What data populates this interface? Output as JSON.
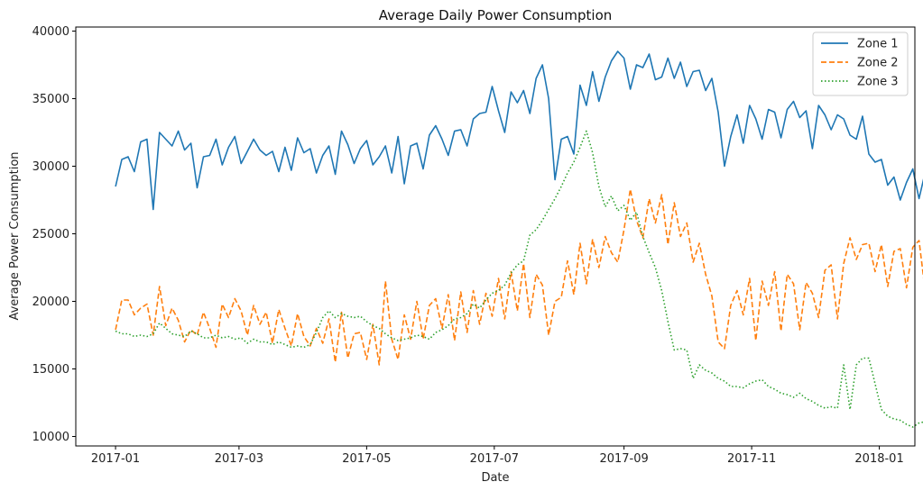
{
  "chart_data": {
    "type": "line",
    "title": "Average Daily Power Consumption",
    "xlabel": "Date",
    "ylabel": "Average Power Consumption",
    "xlim": [
      "2016-12-13",
      "2018-01-18"
    ],
    "ylim": [
      9300,
      40300
    ],
    "x_ticks": [
      "2017-01",
      "2017-03",
      "2017-05",
      "2017-07",
      "2017-09",
      "2017-11",
      "2018-01"
    ],
    "y_ticks": [
      10000,
      15000,
      20000,
      25000,
      30000,
      35000,
      40000
    ],
    "grid": false,
    "legend_position": "top-right",
    "x_start": "2017-01-01",
    "x_step_days": 3,
    "series": [
      {
        "name": "Zone 1",
        "color": "#1f77b4",
        "dash": "solid",
        "values": [
          28500,
          30500,
          30700,
          29600,
          31800,
          32000,
          26800,
          32500,
          32000,
          31500,
          32600,
          31200,
          31700,
          28400,
          30700,
          30800,
          32000,
          30100,
          31400,
          32200,
          30200,
          31100,
          32000,
          31200,
          30800,
          31100,
          29600,
          31400,
          29700,
          32100,
          31000,
          31300,
          29500,
          30800,
          31500,
          29400,
          32600,
          31600,
          30200,
          31300,
          31900,
          30100,
          30700,
          31500,
          29500,
          32200,
          28700,
          31500,
          31700,
          29800,
          32300,
          33000,
          32000,
          30800,
          32600,
          32700,
          31500,
          33500,
          33900,
          34000,
          35900,
          34100,
          32500,
          35500,
          34700,
          35600,
          33900,
          36500,
          37500,
          35000,
          29000,
          32000,
          32200,
          30900,
          36000,
          34500,
          37000,
          34800,
          36600,
          37800,
          38500,
          38000,
          35700,
          37500,
          37300,
          38300,
          36400,
          36600,
          38000,
          36500,
          37700,
          35900,
          37000,
          37100,
          35600,
          36500,
          34000,
          30000,
          32200,
          33800,
          31700,
          34500,
          33500,
          32000,
          34200,
          34000,
          32100,
          34200,
          34800,
          33600,
          34100,
          31300,
          34500,
          33800,
          32700,
          33800,
          33500,
          32300,
          32000,
          33700,
          30900,
          30300,
          30500,
          28600,
          29200,
          27500,
          28800,
          29800,
          27600,
          29600,
          28200,
          29000,
          27700,
          29000,
          30200,
          27300,
          29400,
          30600,
          27200,
          30100,
          29800,
          28800,
          29600,
          27500,
          30000,
          28000
        ]
      },
      {
        "name": "Zone 2",
        "color": "#ff7f0e",
        "dash": "dashed",
        "values": [
          17900,
          20100,
          20100,
          19000,
          19500,
          19800,
          17500,
          21100,
          18200,
          19500,
          18600,
          17000,
          17900,
          17500,
          19200,
          18000,
          16600,
          19800,
          18800,
          20200,
          19300,
          17500,
          19700,
          18300,
          19200,
          16900,
          19400,
          18000,
          16700,
          19100,
          17400,
          16700,
          18000,
          16900,
          18700,
          15500,
          19200,
          15800,
          17600,
          17700,
          15700,
          18300,
          15300,
          21500,
          17200,
          15700,
          19000,
          17200,
          20000,
          17200,
          19700,
          20200,
          18000,
          20500,
          17100,
          20700,
          17700,
          20800,
          18300,
          20600,
          18900,
          21700,
          18700,
          22200,
          19300,
          22800,
          18800,
          22000,
          21200,
          17500,
          20000,
          20300,
          23000,
          20500,
          24300,
          21300,
          24600,
          22500,
          24800,
          23600,
          22900,
          25300,
          28300,
          26000,
          24700,
          27600,
          25800,
          27900,
          24200,
          27300,
          24800,
          25800,
          22900,
          24300,
          22000,
          20400,
          17000,
          16500,
          19700,
          20800,
          19000,
          21700,
          17100,
          21500,
          19700,
          22200,
          17800,
          22000,
          21300,
          17900,
          21400,
          20600,
          18800,
          22300,
          22700,
          18700,
          22800,
          24700,
          23100,
          24200,
          24300,
          22200,
          24200,
          21100,
          23700,
          23900,
          21000,
          24000,
          24500,
          20700,
          24000,
          24200,
          23600,
          24400,
          24900,
          21300,
          24300,
          24400,
          22000,
          24000,
          24200,
          21800,
          24300,
          24200,
          21500,
          24500,
          24800,
          24300
        ]
      },
      {
        "name": "Zone 3",
        "color": "#2ca02c",
        "dash": "dotted",
        "values": [
          17800,
          17600,
          17600,
          17400,
          17500,
          17400,
          17600,
          18400,
          18000,
          17600,
          17500,
          17400,
          17800,
          17600,
          17300,
          17300,
          17500,
          17300,
          17400,
          17200,
          17300,
          16900,
          17200,
          17000,
          17000,
          16800,
          17000,
          16800,
          16600,
          16700,
          16600,
          16800,
          17700,
          18800,
          19300,
          18800,
          19100,
          18900,
          18800,
          18900,
          18500,
          18200,
          18000,
          17600,
          17300,
          17100,
          17200,
          17300,
          17500,
          17400,
          17200,
          17700,
          17900,
          18200,
          18700,
          18800,
          19100,
          19800,
          19500,
          20100,
          20600,
          20800,
          21200,
          22100,
          22700,
          23000,
          24900,
          25300,
          26000,
          26800,
          27600,
          28500,
          29500,
          30300,
          31400,
          32600,
          31000,
          28500,
          27000,
          27800,
          26700,
          27100,
          26000,
          26600,
          24800,
          23600,
          22500,
          20800,
          18500,
          16400,
          16500,
          16400,
          14300,
          15300,
          14900,
          14700,
          14300,
          14100,
          13700,
          13700,
          13600,
          13900,
          14100,
          14200,
          13700,
          13500,
          13200,
          13100,
          12900,
          13200,
          12800,
          12600,
          12300,
          12100,
          12200,
          12100,
          15300,
          12000,
          15300,
          15800,
          15800,
          13900,
          12000,
          11500,
          11300,
          11200,
          10900,
          10700,
          11000,
          11100,
          11300,
          11200,
          11800,
          10900,
          10800,
          10700,
          10600,
          10900,
          11200,
          11300,
          11300,
          11400
        ]
      }
    ]
  }
}
